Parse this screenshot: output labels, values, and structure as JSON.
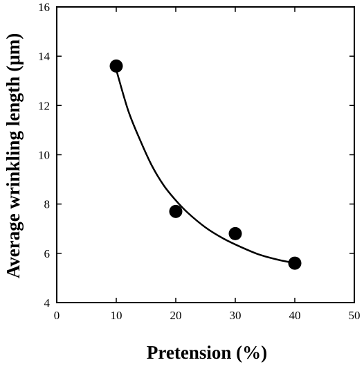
{
  "chart_data": {
    "type": "scatter",
    "title": "",
    "xlabel": "Pretension (%)",
    "ylabel": "Average wrinkling length (μm)",
    "xlim": [
      0,
      50
    ],
    "ylim": [
      4,
      16
    ],
    "xticks": [
      0,
      10,
      20,
      30,
      40,
      50
    ],
    "yticks": [
      4,
      6,
      8,
      10,
      12,
      14,
      16
    ],
    "grid": false,
    "legend": "none",
    "series": [
      {
        "x": [
          10,
          20,
          30,
          40
        ],
        "values": [
          13.6,
          7.7,
          6.8,
          5.6
        ],
        "marker": "filled-circle",
        "color": "#000000"
      }
    ],
    "fit_curve": {
      "type": "smooth-decreasing",
      "color": "#000000",
      "x": [
        10,
        12,
        14,
        16,
        18,
        20,
        22,
        25,
        28,
        31,
        34,
        37,
        40
      ],
      "y": [
        13.45,
        11.8,
        10.6,
        9.55,
        8.75,
        8.15,
        7.65,
        7.05,
        6.6,
        6.25,
        5.95,
        5.75,
        5.6
      ]
    }
  }
}
